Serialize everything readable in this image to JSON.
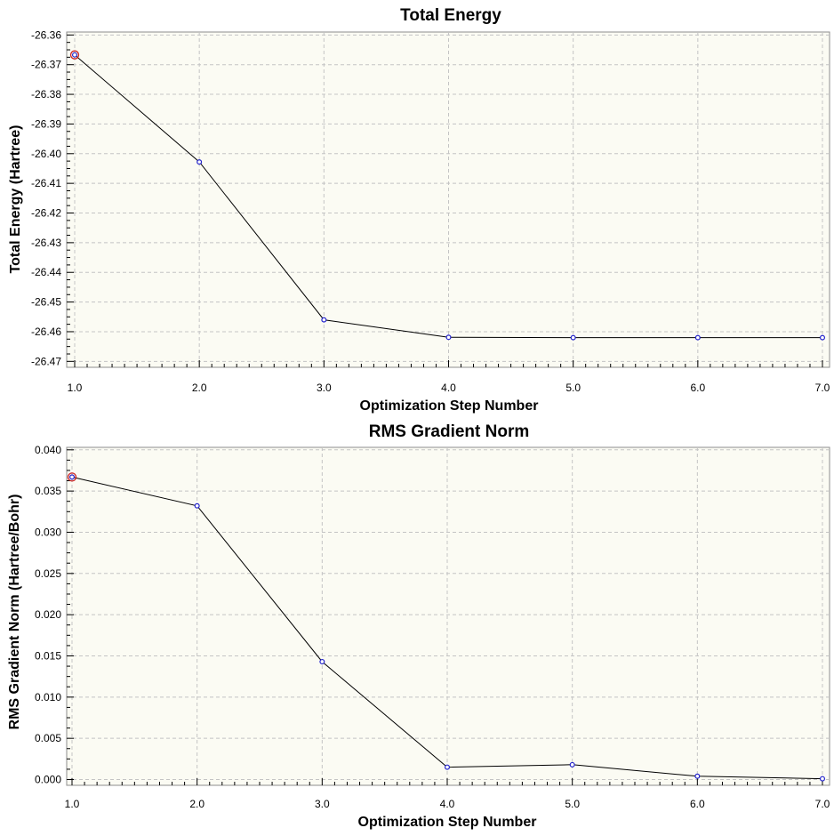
{
  "chart_data": [
    {
      "type": "line",
      "title": "Total Energy",
      "xlabel": "Optimization Step Number",
      "ylabel": "Total Energy (Hartree)",
      "x": [
        1,
        2,
        3,
        4,
        5,
        6,
        7
      ],
      "series": [
        {
          "values": [
            -26.3667,
            -26.4028,
            -26.456,
            -26.4619,
            -26.462,
            -26.462,
            -26.462
          ]
        }
      ],
      "xlim": [
        1,
        7
      ],
      "ylim": [
        -26.472,
        -26.359
      ],
      "xticks": [
        1,
        2,
        3,
        4,
        5,
        6,
        7
      ],
      "xtick_labels": [
        "1.0",
        "2.0",
        "3.0",
        "4.0",
        "5.0",
        "6.0",
        "7.0"
      ],
      "yticks": [
        -26.36,
        -26.37,
        -26.38,
        -26.39,
        -26.4,
        -26.41,
        -26.42,
        -26.43,
        -26.44,
        -26.45,
        -26.46,
        -26.47
      ],
      "ytick_labels": [
        "-26.36",
        "-26.37",
        "-26.38",
        "-26.39",
        "-26.40",
        "-26.41",
        "-26.42",
        "-26.43",
        "-26.44",
        "-26.45",
        "-26.46",
        "-26.47"
      ],
      "highlighted_point_index": 0,
      "grid": true,
      "colors": {
        "background": "#fbfbf3",
        "line": "#000000",
        "marker": "#2222cc",
        "highlight": "#cc2222",
        "grid": "#c4c4c4"
      }
    },
    {
      "type": "line",
      "title": "RMS Gradient Norm",
      "xlabel": "Optimization Step Number",
      "ylabel": "RMS Gradient Norm (Hartree/Bohr)",
      "x": [
        1,
        2,
        3,
        4,
        5,
        6,
        7
      ],
      "series": [
        {
          "values": [
            0.0367,
            0.0332,
            0.0143,
            0.0015,
            0.0018,
            0.0004,
            0.0001
          ]
        }
      ],
      "xlim": [
        1,
        7
      ],
      "ylim": [
        -0.0007,
        0.0403
      ],
      "xticks": [
        1,
        2,
        3,
        4,
        5,
        6,
        7
      ],
      "xtick_labels": [
        "1.0",
        "2.0",
        "3.0",
        "4.0",
        "5.0",
        "6.0",
        "7.0"
      ],
      "yticks": [
        0.04,
        0.035,
        0.03,
        0.025,
        0.02,
        0.015,
        0.01,
        0.005,
        0.0
      ],
      "ytick_labels": [
        "0.040",
        "0.035",
        "0.030",
        "0.025",
        "0.020",
        "0.015",
        "0.010",
        "0.005",
        "0.000"
      ],
      "highlighted_point_index": 0,
      "grid": true,
      "colors": {
        "background": "#fbfbf3",
        "line": "#000000",
        "marker": "#2222cc",
        "highlight": "#cc2222",
        "grid": "#c4c4c4"
      }
    }
  ]
}
